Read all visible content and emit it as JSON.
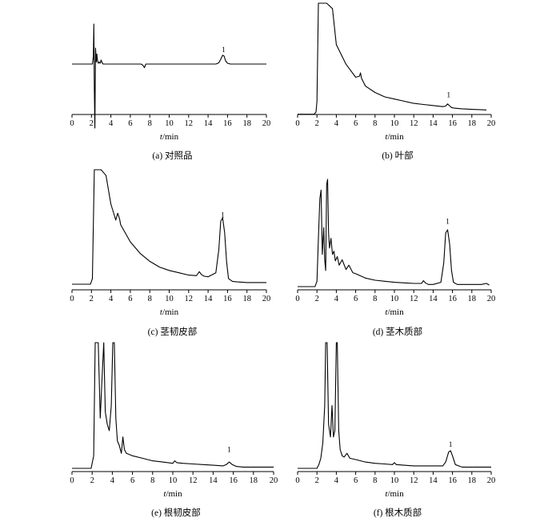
{
  "chart_data": [
    {
      "type": "line",
      "caption": "(a) 对照品",
      "xlabel": "t/min",
      "xlim": [
        0,
        20
      ],
      "xticks": [
        0,
        2,
        4,
        6,
        8,
        10,
        12,
        14,
        16,
        18,
        20
      ],
      "peak_label": "1",
      "peak_label_at": [
        15.6,
        0.2
      ],
      "series": [
        {
          "x": [
            0,
            2.1,
            2.2,
            2.25,
            2.3,
            2.35,
            2.42,
            2.5,
            2.56,
            2.62,
            2.7,
            2.8,
            2.9,
            3.0,
            3.1,
            3.2,
            3.3,
            4,
            7.1,
            7.3,
            7.45,
            7.6,
            8,
            14.8,
            15.1,
            15.3,
            15.5,
            15.65,
            15.8,
            16.0,
            16.3,
            20
          ],
          "y": [
            0,
            0,
            0.2,
            1.35,
            -0.6,
            -1.6,
            0.4,
            0.05,
            0.25,
            0.1,
            0.02,
            0.05,
            0.02,
            0.1,
            0.03,
            0,
            0,
            0,
            0,
            -0.03,
            -0.09,
            0,
            0,
            0,
            0.03,
            0.12,
            0.22,
            0.2,
            0.08,
            0.02,
            0,
            0
          ]
        }
      ]
    },
    {
      "type": "line",
      "caption": "(b) 叶部",
      "xlabel": "t/min",
      "xlim": [
        0,
        20
      ],
      "xticks": [
        0,
        2,
        4,
        6,
        8,
        10,
        12,
        14,
        16,
        18,
        20
      ],
      "peak_label": "1",
      "peak_label_at": [
        15.6,
        0.1
      ],
      "series": [
        {
          "x": [
            0,
            1.7,
            1.9,
            2.0,
            2.15,
            2.25,
            3.0,
            3.6,
            4,
            5,
            6,
            6.4,
            6.5,
            6.6,
            7,
            8,
            9,
            10,
            11,
            12,
            13,
            14,
            15,
            15.3,
            15.5,
            15.7,
            15.9,
            16.2,
            17,
            18,
            19.5
          ],
          "y": [
            -0.02,
            -0.02,
            0,
            0.1,
            1.1,
            1.2,
            1.2,
            0.95,
            0.62,
            0.44,
            0.32,
            0.33,
            0.36,
            0.31,
            0.24,
            0.18,
            0.14,
            0.12,
            0.1,
            0.08,
            0.07,
            0.06,
            0.05,
            0.055,
            0.075,
            0.058,
            0.042,
            0.036,
            0.03,
            0.025,
            0.02
          ]
        }
      ]
    },
    {
      "type": "line",
      "caption": "(c) 茎韧皮部",
      "xlabel": "t/min",
      "xlim": [
        0,
        20
      ],
      "xticks": [
        0,
        2,
        4,
        6,
        8,
        10,
        12,
        14,
        16,
        18,
        20
      ],
      "peak_label": "1",
      "peak_label_at": [
        15.5,
        0.55
      ],
      "series": [
        {
          "x": [
            0,
            1.9,
            2.1,
            2.3,
            2.5,
            3.0,
            3.5,
            4,
            4.5,
            4.7,
            4.9,
            5,
            6,
            7,
            8,
            9,
            10,
            11,
            12,
            12.8,
            13.1,
            13.3,
            13.6,
            14,
            14.8,
            15.1,
            15.3,
            15.5,
            15.7,
            15.9,
            16.1,
            16.5,
            17,
            18,
            19,
            20
          ],
          "y": [
            0,
            0,
            0.05,
            1.2,
            1.2,
            1.2,
            0.95,
            0.7,
            0.56,
            0.62,
            0.57,
            0.52,
            0.37,
            0.27,
            0.2,
            0.15,
            0.12,
            0.1,
            0.08,
            0.075,
            0.11,
            0.085,
            0.07,
            0.065,
            0.1,
            0.3,
            0.55,
            0.58,
            0.45,
            0.2,
            0.05,
            0.025,
            0.02,
            0.015,
            0.015,
            0.015
          ]
        }
      ]
    },
    {
      "type": "line",
      "caption": "(d) 茎木质部",
      "xlabel": "t/min",
      "xlim": [
        0,
        20
      ],
      "xticks": [
        0,
        2,
        4,
        6,
        8,
        10,
        12,
        14,
        16,
        18,
        20
      ],
      "peak_label": "1",
      "peak_label_at": [
        15.5,
        0.55
      ],
      "series": [
        {
          "x": [
            0,
            1.8,
            2.0,
            2.15,
            2.3,
            2.42,
            2.55,
            2.7,
            2.8,
            2.9,
            3.0,
            3.1,
            3.2,
            3.3,
            3.45,
            3.6,
            3.75,
            3.9,
            4.1,
            4.3,
            4.6,
            5.0,
            5.3,
            5.7,
            6,
            7,
            8,
            9,
            10,
            11,
            12,
            12.8,
            13.0,
            13.2,
            13.5,
            14,
            14.8,
            15.1,
            15.3,
            15.5,
            15.7,
            15.9,
            16.1,
            16.5,
            17,
            18,
            19,
            19.5,
            19.8
          ],
          "y": [
            0,
            0,
            0.05,
            0.45,
            0.82,
            0.9,
            0.3,
            0.55,
            0.25,
            0.15,
            0.95,
            1.2,
            0.5,
            0.36,
            0.45,
            0.3,
            0.33,
            0.24,
            0.28,
            0.2,
            0.25,
            0.16,
            0.2,
            0.13,
            0.12,
            0.08,
            0.06,
            0.05,
            0.04,
            0.035,
            0.03,
            0.03,
            0.055,
            0.035,
            0.02,
            0.02,
            0.04,
            0.22,
            0.5,
            0.53,
            0.4,
            0.15,
            0.04,
            0.02,
            0.02,
            0.02,
            0.02,
            0.03,
            0.015
          ]
        }
      ]
    },
    {
      "type": "line",
      "caption": "(e) 根韧皮部",
      "xlabel": "t/min",
      "xlim": [
        0,
        20
      ],
      "xticks": [
        0,
        2,
        4,
        6,
        8,
        10,
        12,
        14,
        16,
        18,
        20
      ],
      "peak_label": "1",
      "peak_label_at": [
        15.6,
        0.1
      ],
      "series": [
        {
          "x": [
            0,
            1.9,
            2.15,
            2.3,
            2.45,
            2.6,
            2.8,
            3.0,
            3.15,
            3.3,
            3.5,
            3.7,
            3.9,
            4.05,
            4.2,
            4.35,
            4.5,
            4.7,
            4.9,
            5.05,
            5.2,
            5.4,
            6,
            7,
            8,
            9,
            10,
            10.2,
            10.4,
            11,
            12,
            13,
            14,
            15,
            15.3,
            15.6,
            15.9,
            16.3,
            17,
            20
          ],
          "y": [
            0,
            0,
            0.1,
            1.2,
            1.2,
            1.2,
            0.4,
            0.75,
            1.2,
            0.45,
            0.35,
            0.3,
            0.5,
            1.2,
            1.2,
            0.4,
            0.22,
            0.18,
            0.12,
            0.25,
            0.15,
            0.12,
            0.1,
            0.08,
            0.06,
            0.05,
            0.04,
            0.06,
            0.045,
            0.04,
            0.035,
            0.03,
            0.025,
            0.02,
            0.03,
            0.05,
            0.03,
            0.015,
            0.01,
            0.01
          ]
        }
      ]
    },
    {
      "type": "line",
      "caption": "(f) 根木质部",
      "xlabel": "t/min",
      "xlim": [
        0,
        20
      ],
      "xticks": [
        0,
        2,
        4,
        6,
        8,
        10,
        12,
        14,
        16,
        18,
        20
      ],
      "peak_label": "1",
      "peak_label_at": [
        15.8,
        0.14
      ],
      "series": [
        {
          "x": [
            0,
            2.0,
            2.2,
            2.4,
            2.6,
            2.8,
            2.9,
            3.05,
            3.2,
            3.4,
            3.55,
            3.7,
            3.85,
            4.0,
            4.1,
            4.25,
            4.4,
            4.6,
            4.8,
            5.1,
            5.4,
            6,
            7,
            8,
            9,
            9.8,
            10,
            10.2,
            11,
            12,
            13,
            14,
            15,
            15.3,
            15.6,
            15.8,
            16.0,
            16.3,
            16.8,
            17,
            18,
            20
          ],
          "y": [
            0,
            0,
            0.03,
            0.08,
            0.2,
            0.5,
            1.2,
            1.2,
            0.35,
            0.25,
            0.5,
            0.25,
            0.3,
            1.2,
            1.2,
            0.3,
            0.15,
            0.1,
            0.09,
            0.12,
            0.08,
            0.07,
            0.05,
            0.04,
            0.035,
            0.03,
            0.045,
            0.03,
            0.025,
            0.02,
            0.02,
            0.02,
            0.02,
            0.05,
            0.13,
            0.14,
            0.1,
            0.03,
            0.015,
            0.01,
            0.01,
            0.01
          ]
        }
      ]
    }
  ]
}
